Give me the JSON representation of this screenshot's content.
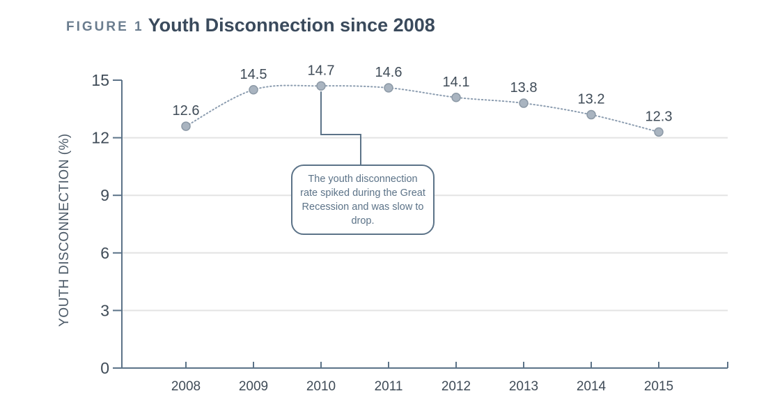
{
  "figure": {
    "label": "FIGURE 1",
    "title": "Youth Disconnection since 2008"
  },
  "colors": {
    "axis": "#5c7388",
    "marker": "#a9b4c0",
    "marker_stroke": "#8c99a6",
    "gridline": "#e3e3e3",
    "text": "#3f4b57"
  },
  "annotation": {
    "text": "The youth disconnection rate spiked during the Great Recession and was slow to drop.",
    "points_to": "2010"
  },
  "chart_data": {
    "type": "line",
    "title": "Youth Disconnection since 2008",
    "xlabel": "",
    "ylabel": "YOUTH DISCONNECTION (%)",
    "x": [
      "2008",
      "2009",
      "2010",
      "2011",
      "2012",
      "2013",
      "2014",
      "2015"
    ],
    "series": [
      {
        "values": [
          12.6,
          14.5,
          14.7,
          14.6,
          14.1,
          13.8,
          13.2,
          12.3
        ],
        "labels": [
          "12.6",
          "14.5",
          "14.7",
          "14.6",
          "14.1",
          "13.8",
          "13.2",
          "12.3"
        ]
      }
    ],
    "ylim": [
      0,
      15
    ],
    "yticks": [
      0,
      3,
      6,
      9,
      12,
      15
    ],
    "line_style": "dotted",
    "grid": "horizontal"
  }
}
